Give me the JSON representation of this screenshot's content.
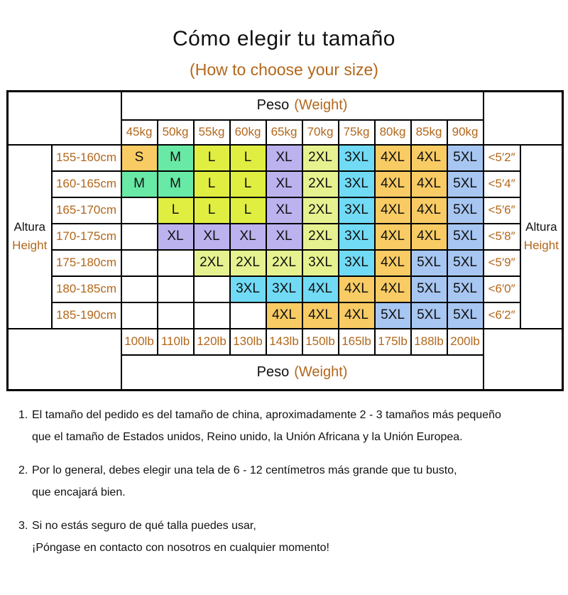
{
  "header": {
    "title": "Cómo elegir tu tamaño",
    "subtitle": "(How to choose your size)"
  },
  "palette": {
    "amber": "#F8CB64",
    "mint": "#68E9A5",
    "yellow_green": "#DFEE41",
    "lavender": "#BCB2EE",
    "pale_green": "#E6F28F",
    "cyan": "#71DBF5",
    "blue": "#A7C6F1"
  },
  "accent_text_color": "#B2671B",
  "table": {
    "peso_label": "Peso",
    "weight_label": "(Weight)",
    "altura_es": "Altura",
    "altura_en": "Height",
    "kg_labels": [
      "45kg",
      "50kg",
      "55kg",
      "60kg",
      "65kg",
      "70kg",
      "75kg",
      "80kg",
      "85kg",
      "90kg"
    ],
    "lb_labels": [
      "100lb",
      "110lb",
      "120lb",
      "130lb",
      "143lb",
      "150lb",
      "165lb",
      "175lb",
      "188lb",
      "200lb"
    ],
    "rows": [
      {
        "height_cm": "155-160cm",
        "height_in": "<5′2″",
        "cells": [
          {
            "label": "S",
            "color": "amber"
          },
          {
            "label": "M",
            "color": "mint"
          },
          {
            "label": "L",
            "color": "yellow_green"
          },
          {
            "label": "L",
            "color": "yellow_green"
          },
          {
            "label": "XL",
            "color": "lavender"
          },
          {
            "label": "2XL",
            "color": "pale_green"
          },
          {
            "label": "3XL",
            "color": "cyan"
          },
          {
            "label": "4XL",
            "color": "amber"
          },
          {
            "label": "4XL",
            "color": "amber"
          },
          {
            "label": "5XL",
            "color": "blue"
          }
        ]
      },
      {
        "height_cm": "160-165cm",
        "height_in": "<5′4″",
        "cells": [
          {
            "label": "M",
            "color": "mint"
          },
          {
            "label": "M",
            "color": "mint"
          },
          {
            "label": "L",
            "color": "yellow_green"
          },
          {
            "label": "L",
            "color": "yellow_green"
          },
          {
            "label": "XL",
            "color": "lavender"
          },
          {
            "label": "2XL",
            "color": "pale_green"
          },
          {
            "label": "3XL",
            "color": "cyan"
          },
          {
            "label": "4XL",
            "color": "amber"
          },
          {
            "label": "4XL",
            "color": "amber"
          },
          {
            "label": "5XL",
            "color": "blue"
          }
        ]
      },
      {
        "height_cm": "165-170cm",
        "height_in": "<5′6″",
        "cells": [
          null,
          {
            "label": "L",
            "color": "yellow_green"
          },
          {
            "label": "L",
            "color": "yellow_green"
          },
          {
            "label": "L",
            "color": "yellow_green"
          },
          {
            "label": "XL",
            "color": "lavender"
          },
          {
            "label": "2XL",
            "color": "pale_green"
          },
          {
            "label": "3XL",
            "color": "cyan"
          },
          {
            "label": "4XL",
            "color": "amber"
          },
          {
            "label": "4XL",
            "color": "amber"
          },
          {
            "label": "5XL",
            "color": "blue"
          }
        ]
      },
      {
        "height_cm": "170-175cm",
        "height_in": "<5′8″",
        "cells": [
          null,
          {
            "label": "XL",
            "color": "lavender"
          },
          {
            "label": "XL",
            "color": "lavender"
          },
          {
            "label": "XL",
            "color": "lavender"
          },
          {
            "label": "XL",
            "color": "lavender"
          },
          {
            "label": "2XL",
            "color": "pale_green"
          },
          {
            "label": "3XL",
            "color": "cyan"
          },
          {
            "label": "4XL",
            "color": "amber"
          },
          {
            "label": "4XL",
            "color": "amber"
          },
          {
            "label": "5XL",
            "color": "blue"
          }
        ]
      },
      {
        "height_cm": "175-180cm",
        "height_in": "<5′9″",
        "cells": [
          null,
          null,
          {
            "label": "2XL",
            "color": "pale_green"
          },
          {
            "label": "2XL",
            "color": "pale_green"
          },
          {
            "label": "2XL",
            "color": "pale_green"
          },
          {
            "label": "3XL",
            "color": "pale_green"
          },
          {
            "label": "3XL",
            "color": "cyan"
          },
          {
            "label": "4XL",
            "color": "amber"
          },
          {
            "label": "5XL",
            "color": "blue"
          },
          {
            "label": "5XL",
            "color": "blue"
          }
        ]
      },
      {
        "height_cm": "180-185cm",
        "height_in": "<6′0″",
        "cells": [
          null,
          null,
          null,
          {
            "label": "3XL",
            "color": "cyan"
          },
          {
            "label": "3XL",
            "color": "cyan"
          },
          {
            "label": "4XL",
            "color": "cyan"
          },
          {
            "label": "4XL",
            "color": "amber"
          },
          {
            "label": "4XL",
            "color": "amber"
          },
          {
            "label": "5XL",
            "color": "blue"
          },
          {
            "label": "5XL",
            "color": "blue"
          }
        ]
      },
      {
        "height_cm": "185-190cm",
        "height_in": "<6′2″",
        "cells": [
          null,
          null,
          null,
          null,
          {
            "label": "4XL",
            "color": "amber"
          },
          {
            "label": "4XL",
            "color": "amber"
          },
          {
            "label": "4XL",
            "color": "amber"
          },
          {
            "label": "5XL",
            "color": "blue"
          },
          {
            "label": "5XL",
            "color": "blue"
          },
          {
            "label": "5XL",
            "color": "blue"
          }
        ]
      }
    ]
  },
  "notes": [
    {
      "num": "1.",
      "line1": "El tamaño del pedido es del tamaño de china, aproximadamente 2 - 3 tamaños más pequeño",
      "line2": "que el tamaño de Estados unidos, Reino unido, la Unión Africana y la Unión Europea."
    },
    {
      "num": "2.",
      "line1": "Por lo general, debes elegir una tela de 6 - 12 centímetros más grande que tu busto,",
      "line2": "que encajará bien."
    },
    {
      "num": "3.",
      "line1": "Si no estás seguro de qué talla puedes usar,",
      "line2": "¡Póngase en contacto con nosotros en cualquier momento!"
    }
  ]
}
